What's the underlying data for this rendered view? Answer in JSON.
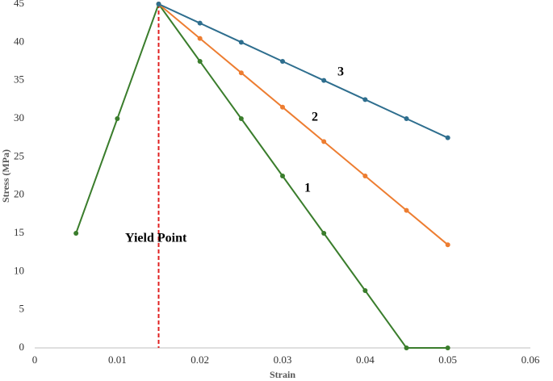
{
  "chart_data": {
    "type": "line",
    "xlabel": "Strain",
    "ylabel": "Stress (MPa)",
    "xlim": [
      0,
      0.06
    ],
    "xticks": [
      0,
      0.01,
      0.02,
      0.03,
      0.04,
      0.05,
      0.06
    ],
    "ylim": [
      0,
      45
    ],
    "yticks": [
      0,
      5,
      10,
      15,
      20,
      25,
      30,
      35,
      40,
      45
    ],
    "grid": false,
    "series": [
      {
        "name": "1",
        "color": "#3a7d2c",
        "x": [
          0.005,
          0.01,
          0.015,
          0.02,
          0.025,
          0.03,
          0.035,
          0.04,
          0.045,
          0.05
        ],
        "values": [
          15,
          30,
          45,
          37.5,
          30,
          22.5,
          15,
          7.5,
          0,
          0
        ]
      },
      {
        "name": "2",
        "color": "#ed7d31",
        "x": [
          0.015,
          0.02,
          0.025,
          0.03,
          0.035,
          0.04,
          0.045,
          0.05
        ],
        "values": [
          45,
          40.5,
          36,
          31.5,
          27,
          22.5,
          18,
          13.5
        ]
      },
      {
        "name": "3",
        "color": "#2e6e8e",
        "x": [
          0.015,
          0.02,
          0.025,
          0.03,
          0.035,
          0.04,
          0.045,
          0.05
        ],
        "values": [
          45,
          42.5,
          40,
          37.5,
          35,
          32.5,
          30,
          27.5
        ]
      }
    ],
    "vline": {
      "x": 0.015,
      "label": "Yield Point",
      "color": "#e02020"
    }
  }
}
